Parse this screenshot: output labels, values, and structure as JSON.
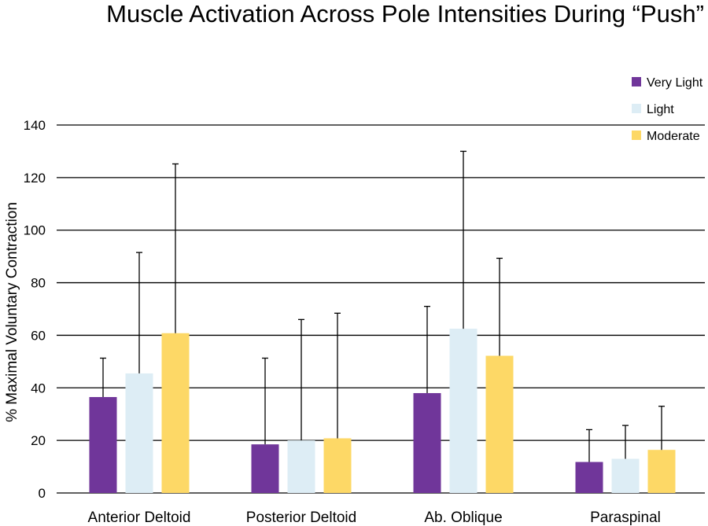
{
  "chart_data": {
    "type": "bar",
    "title": "Muscle Activation Across Pole Intensities During “Push”",
    "xlabel": "",
    "ylabel": "% Maximal Voluntary Contraction",
    "ylim": [
      0,
      140
    ],
    "yticks": [
      0,
      20,
      40,
      60,
      80,
      100,
      120,
      140
    ],
    "grid": true,
    "legend_position": "top-right",
    "categories": [
      "Anterior Deltoid",
      "Posterior Deltoid",
      "Ab. Oblique",
      "Paraspinal"
    ],
    "series": [
      {
        "name": "Very Light",
        "color": "#70369a",
        "values": [
          36.5,
          18.5,
          38,
          11.8
        ],
        "error": [
          14.8,
          32.8,
          33,
          12.3
        ]
      },
      {
        "name": "Light",
        "color": "#ddedf5",
        "values": [
          45.5,
          20,
          62.5,
          13
        ],
        "error": [
          46,
          46,
          67.5,
          12.7
        ]
      },
      {
        "name": "Moderate",
        "color": "#fdd866",
        "values": [
          60.8,
          20.8,
          52.2,
          16.4
        ],
        "error": [
          64.4,
          47.6,
          37.1,
          16.6
        ]
      }
    ]
  }
}
